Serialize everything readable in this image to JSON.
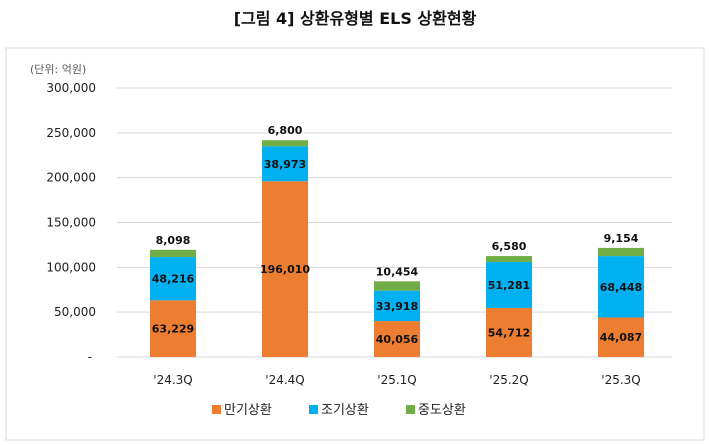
{
  "chart_data": {
    "type": "bar",
    "stacked": true,
    "title": "[그림 4] 상환유형별 ELS 상환현황",
    "unit_label": "(단위: 억원)",
    "categories": [
      "'24.3Q",
      "'24.4Q",
      "'25.1Q",
      "'25.2Q",
      "'25.3Q"
    ],
    "series": [
      {
        "name": "만기상환",
        "color": "#ED7D31",
        "values": [
          63229,
          196010,
          40056,
          54712,
          44087
        ]
      },
      {
        "name": "조기상환",
        "color": "#00B0F0",
        "values": [
          48216,
          38973,
          33918,
          51281,
          68448
        ]
      },
      {
        "name": "중도상환",
        "color": "#70AD47",
        "values": [
          8098,
          6800,
          10454,
          6580,
          9154
        ]
      }
    ],
    "ylim": [
      0,
      300000
    ],
    "yticks": [
      0,
      50000,
      100000,
      150000,
      200000,
      250000,
      300000
    ],
    "ytick_labels": [
      "-",
      "50,000",
      "100,000",
      "150,000",
      "200,000",
      "250,000",
      "300,000"
    ],
    "grid": true,
    "legend": "bottom"
  }
}
